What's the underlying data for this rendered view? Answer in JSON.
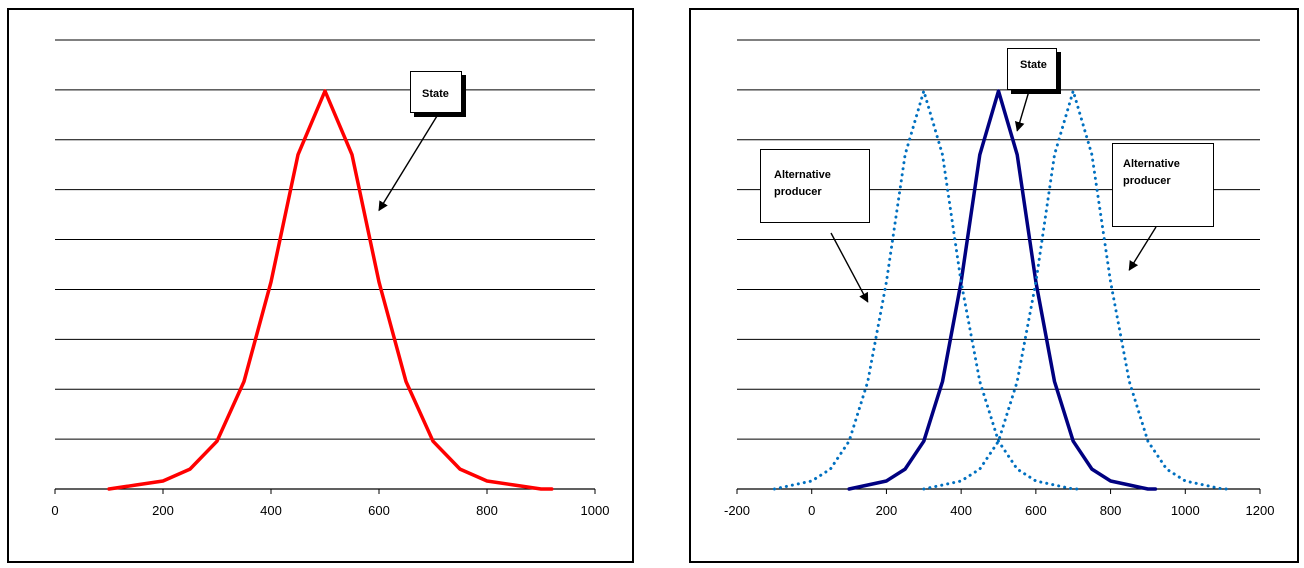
{
  "chart_data": [
    {
      "type": "line",
      "title": "",
      "xlabel": "",
      "ylabel": "",
      "xlim": [
        0,
        1000
      ],
      "x_ticks": [
        "0",
        "200",
        "400",
        "600",
        "800",
        "1000"
      ],
      "grid": true,
      "gridline_count": 9,
      "series": [
        {
          "color": "#ff0000",
          "style": "solid",
          "x": [
            100,
            150,
            200,
            250,
            300,
            350,
            400,
            450,
            500,
            550,
            600,
            650,
            700,
            750,
            800,
            850,
            900,
            920
          ],
          "y": [
            0.0,
            0.01,
            0.02,
            0.05,
            0.12,
            0.27,
            0.52,
            0.84,
            1.0,
            0.84,
            0.52,
            0.27,
            0.12,
            0.05,
            0.02,
            0.01,
            0.0,
            0.0
          ]
        }
      ],
      "annotations": [
        {
          "text": "State",
          "points_to": {
            "x": 600,
            "y": 0.7
          }
        }
      ]
    },
    {
      "type": "line",
      "title": "",
      "xlabel": "",
      "ylabel": "",
      "xlim": [
        -200,
        1200
      ],
      "x_ticks": [
        "-200",
        "0",
        "200",
        "400",
        "600",
        "800",
        "1000",
        "1200"
      ],
      "grid": true,
      "gridline_count": 9,
      "series": [
        {
          "color": "#000080",
          "style": "solid",
          "x": [
            100,
            150,
            200,
            250,
            300,
            350,
            400,
            450,
            500,
            550,
            600,
            650,
            700,
            750,
            800,
            850,
            900,
            920
          ],
          "y": [
            0.0,
            0.01,
            0.02,
            0.05,
            0.12,
            0.27,
            0.52,
            0.84,
            1.0,
            0.84,
            0.52,
            0.27,
            0.12,
            0.05,
            0.02,
            0.01,
            0.0,
            0.0
          ]
        },
        {
          "color": "#0070c0",
          "style": "dotted",
          "x": [
            -100,
            -50,
            0,
            50,
            100,
            150,
            200,
            250,
            300,
            350,
            400,
            450,
            500,
            550,
            600,
            650,
            700,
            720
          ],
          "y": [
            0.0,
            0.01,
            0.02,
            0.05,
            0.12,
            0.27,
            0.52,
            0.84,
            1.0,
            0.84,
            0.52,
            0.27,
            0.12,
            0.05,
            0.02,
            0.01,
            0.0,
            0.0
          ]
        },
        {
          "color": "#0070c0",
          "style": "dotted",
          "x": [
            300,
            350,
            400,
            450,
            500,
            550,
            600,
            650,
            700,
            750,
            800,
            850,
            900,
            950,
            1000,
            1050,
            1100,
            1120
          ],
          "y": [
            0.0,
            0.01,
            0.02,
            0.05,
            0.12,
            0.27,
            0.52,
            0.84,
            1.0,
            0.84,
            0.52,
            0.27,
            0.12,
            0.05,
            0.02,
            0.01,
            0.0,
            0.0
          ]
        }
      ],
      "annotations": [
        {
          "text": "State",
          "points_to": {
            "x": 550,
            "y": 0.9
          }
        },
        {
          "lines": [
            "Alternative",
            "producer"
          ],
          "points_to": {
            "x": 150,
            "y": 0.47
          }
        },
        {
          "lines": [
            "Alternative",
            "producer"
          ],
          "points_to": {
            "x": 850,
            "y": 0.55
          }
        }
      ]
    }
  ]
}
